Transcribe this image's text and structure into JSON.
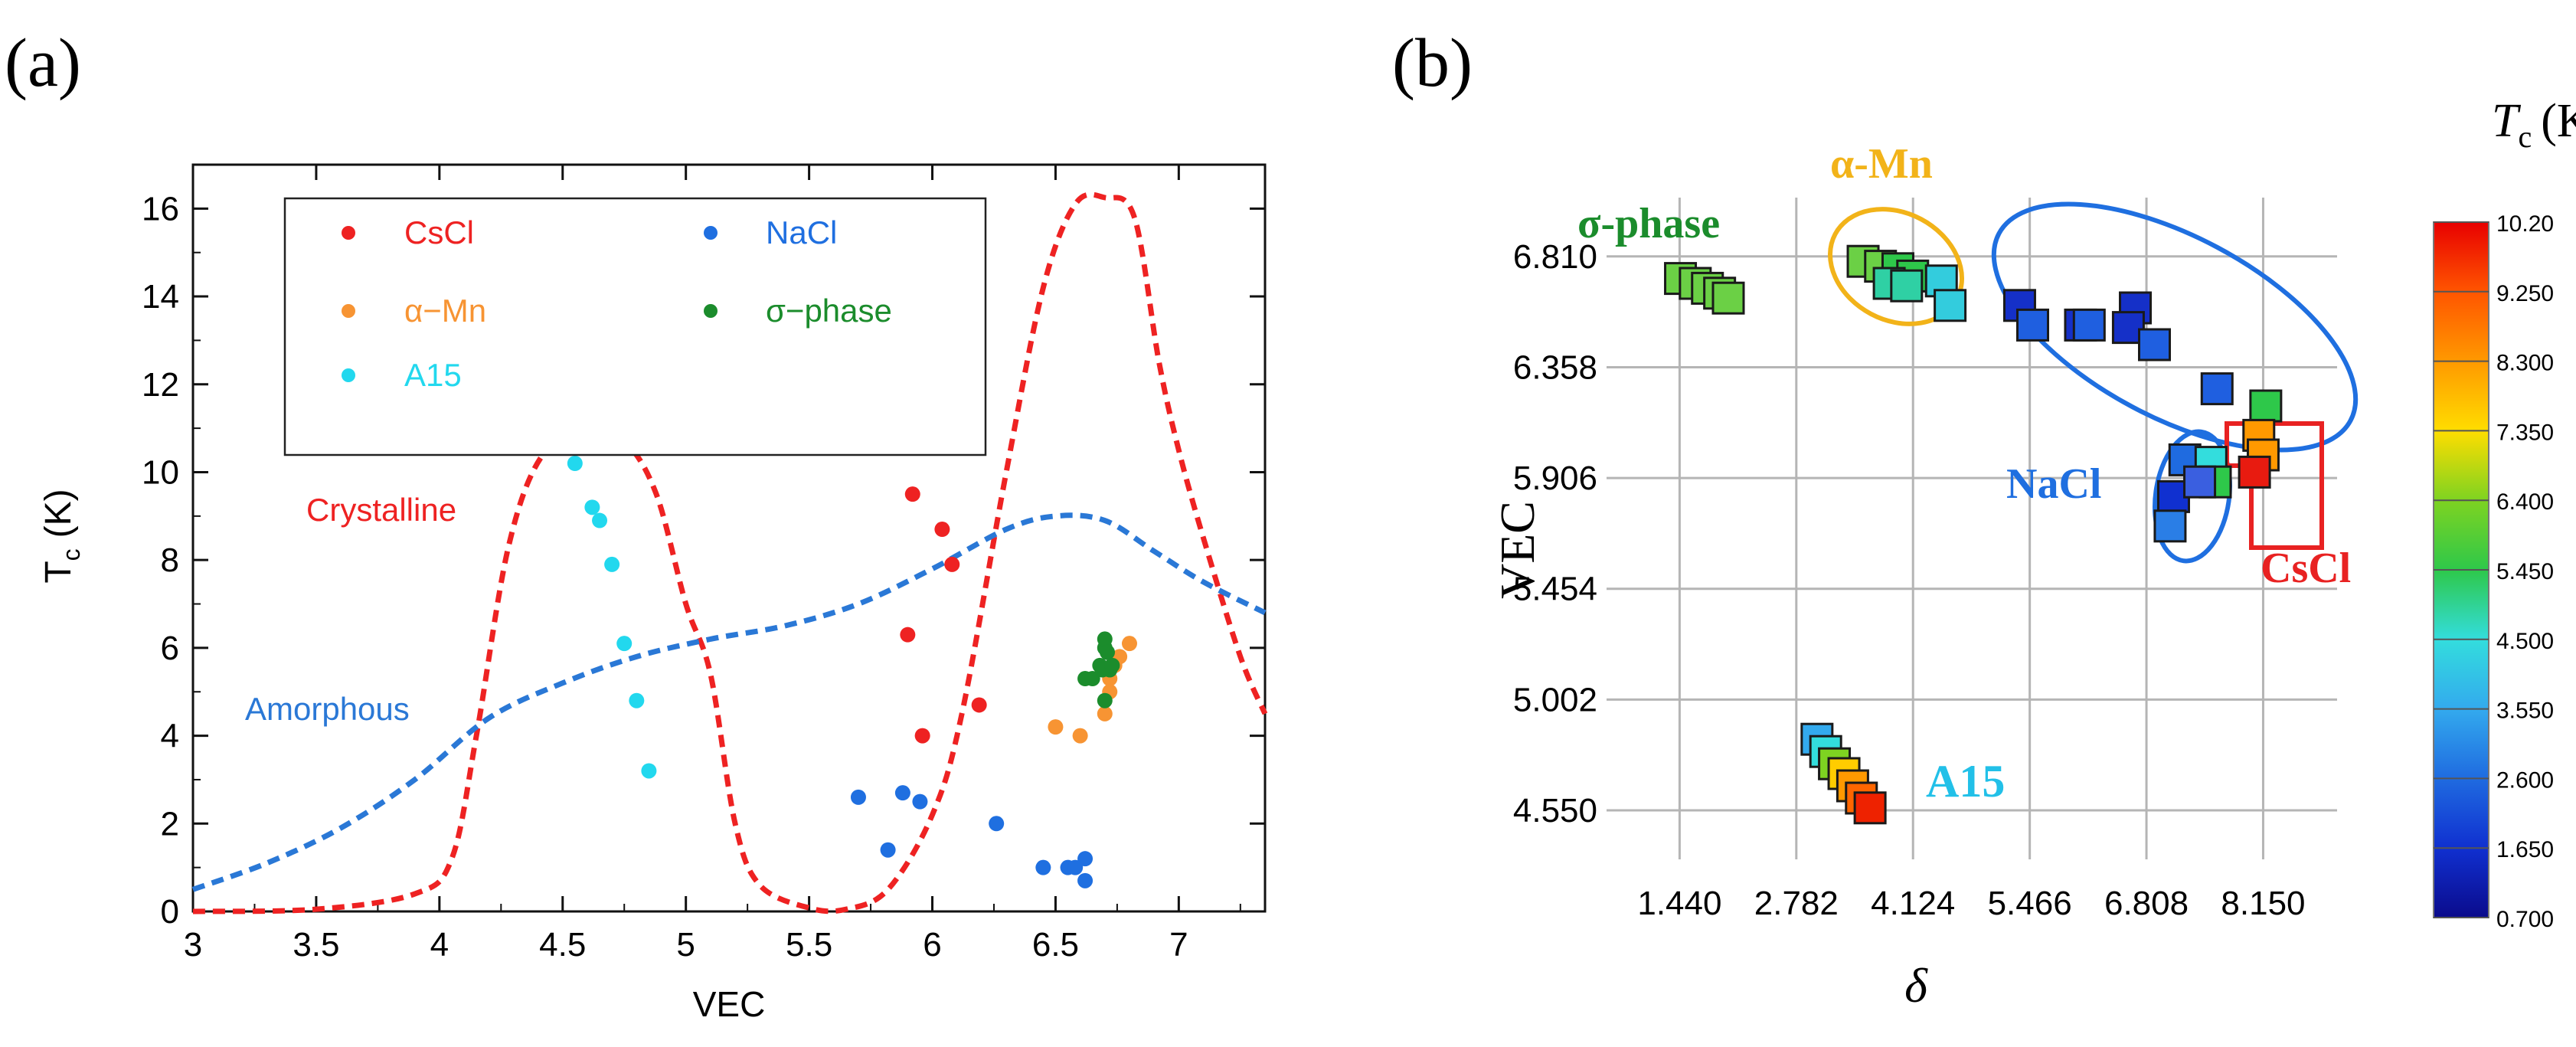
{
  "chart_data": [
    {
      "panel_label": "(a)",
      "type": "scatter",
      "title": "",
      "xlabel": "VEC",
      "ylabel_main": "T",
      "ylabel_sub": "c",
      "ylabel_unit": "(K)",
      "xlim": [
        3,
        7.35
      ],
      "ylim": [
        0,
        17
      ],
      "xticks": [
        3,
        3.5,
        4,
        4.5,
        5,
        5.5,
        6,
        6.5,
        7
      ],
      "xtick_labels": [
        "3",
        "3.5",
        "4",
        "4.5",
        "5",
        "5.5",
        "6",
        "6.5",
        "7"
      ],
      "yticks": [
        0,
        2,
        4,
        6,
        8,
        10,
        12,
        14,
        16
      ],
      "ytick_labels": [
        "0",
        "2",
        "4",
        "6",
        "8",
        "10",
        "12",
        "14",
        "16"
      ],
      "series": [
        {
          "name": "CsCl",
          "color": "#ee2222",
          "points": [
            [
              5.9,
              6.3
            ],
            [
              5.92,
              9.5
            ],
            [
              5.96,
              4.0
            ],
            [
              6.04,
              8.7
            ],
            [
              6.08,
              7.9
            ],
            [
              6.19,
              4.7
            ]
          ]
        },
        {
          "name": "α−Mn",
          "color": "#f79433",
          "points": [
            [
              6.5,
              4.2
            ],
            [
              6.6,
              4.0
            ],
            [
              6.7,
              4.5
            ],
            [
              6.72,
              5.3
            ],
            [
              6.74,
              5.6
            ],
            [
              6.76,
              5.8
            ],
            [
              6.8,
              6.1
            ],
            [
              6.72,
              5.0
            ]
          ]
        },
        {
          "name": "A15",
          "color": "#22d8ee",
          "points": [
            [
              4.55,
              10.2
            ],
            [
              4.62,
              9.2
            ],
            [
              4.65,
              8.9
            ],
            [
              4.7,
              7.9
            ],
            [
              4.75,
              6.1
            ],
            [
              4.8,
              4.8
            ],
            [
              4.85,
              3.2
            ]
          ]
        },
        {
          "name": "NaCl",
          "color": "#1f6fe0",
          "points": [
            [
              5.7,
              2.6
            ],
            [
              5.82,
              1.4
            ],
            [
              5.88,
              2.7
            ],
            [
              5.95,
              2.5
            ],
            [
              6.26,
              2.0
            ],
            [
              6.45,
              1.0
            ],
            [
              6.55,
              1.0
            ],
            [
              6.58,
              1.0
            ],
            [
              6.62,
              1.2
            ],
            [
              6.62,
              0.7
            ]
          ]
        },
        {
          "name": "σ−phase",
          "color": "#1b8c2c",
          "points": [
            [
              6.62,
              5.3
            ],
            [
              6.65,
              5.3
            ],
            [
              6.68,
              5.6
            ],
            [
              6.7,
              6.0
            ],
            [
              6.7,
              6.2
            ],
            [
              6.7,
              4.8
            ],
            [
              6.72,
              5.5
            ],
            [
              6.71,
              5.9
            ],
            [
              6.69,
              5.5
            ],
            [
              6.73,
              5.6
            ]
          ]
        }
      ],
      "curves": [
        {
          "name": "Crystalline",
          "color": "#ee2222",
          "dashed": true,
          "points": [
            [
              3,
              0
            ],
            [
              3.5,
              0.05
            ],
            [
              3.9,
              0.4
            ],
            [
              4.05,
              1.2
            ],
            [
              4.15,
              4.0
            ],
            [
              4.28,
              8.3
            ],
            [
              4.42,
              10.4
            ],
            [
              4.6,
              10.85
            ],
            [
              4.75,
              10.7
            ],
            [
              4.88,
              9.5
            ],
            [
              5.0,
              7.0
            ],
            [
              5.1,
              5.4
            ],
            [
              5.2,
              2.0
            ],
            [
              5.3,
              0.6
            ],
            [
              5.5,
              0.08
            ],
            [
              5.65,
              0.05
            ],
            [
              5.82,
              0.5
            ],
            [
              6.0,
              2.2
            ],
            [
              6.12,
              4.5
            ],
            [
              6.3,
              10.0
            ],
            [
              6.45,
              14.2
            ],
            [
              6.58,
              16.1
            ],
            [
              6.7,
              16.25
            ],
            [
              6.82,
              15.8
            ],
            [
              6.92,
              12.5
            ],
            [
              7.0,
              10.5
            ],
            [
              7.1,
              8.5
            ],
            [
              7.25,
              5.8
            ],
            [
              7.35,
              4.5
            ]
          ]
        },
        {
          "name": "Amorphous",
          "color": "#2a78d6",
          "dashed": true,
          "points": [
            [
              3,
              0.5
            ],
            [
              3.3,
              1.1
            ],
            [
              3.6,
              1.9
            ],
            [
              3.9,
              3.0
            ],
            [
              4.2,
              4.4
            ],
            [
              4.5,
              5.2
            ],
            [
              4.8,
              5.8
            ],
            [
              5.1,
              6.2
            ],
            [
              5.4,
              6.5
            ],
            [
              5.7,
              7.0
            ],
            [
              6.0,
              7.8
            ],
            [
              6.3,
              8.7
            ],
            [
              6.5,
              9.0
            ],
            [
              6.7,
              8.9
            ],
            [
              6.9,
              8.2
            ],
            [
              7.1,
              7.5
            ],
            [
              7.35,
              6.8
            ]
          ]
        }
      ],
      "annotations": [
        {
          "text": "Crystalline",
          "color": "#ee2222",
          "x": 3.42,
          "y": 9.4
        },
        {
          "text": "Amorphous",
          "color": "#2a78d6",
          "x": 3.17,
          "y": 4.55
        }
      ],
      "legend_position": "top-left"
    },
    {
      "panel_label": "(b)",
      "type": "heatmap",
      "title": "",
      "xlabel": "δ",
      "ylabel": "VEC",
      "xlim": [
        0.6,
        9.0
      ],
      "ylim": [
        4.35,
        7.05
      ],
      "xticks": [
        1.44,
        2.782,
        4.124,
        5.466,
        6.808,
        8.15
      ],
      "xtick_labels": [
        "1.440",
        "2.782",
        "4.124",
        "5.466",
        "6.808",
        "8.150"
      ],
      "yticks": [
        4.55,
        5.002,
        5.454,
        5.906,
        6.358,
        6.81
      ],
      "ytick_labels": [
        "4.550",
        "5.002",
        "5.454",
        "5.906",
        "6.358",
        "6.810"
      ],
      "colorbar_title_main": "T",
      "colorbar_title_sub": "c",
      "colorbar_title_unit": "(K)",
      "colorbar_ticks": [
        "10.20",
        "9.250",
        "8.300",
        "7.350",
        "6.400",
        "5.450",
        "4.500",
        "3.550",
        "2.600",
        "1.650",
        "0.700"
      ],
      "colorbar_colors": [
        "#e80000",
        "#ff5500",
        "#ff9900",
        "#ffdd00",
        "#7ed321",
        "#2ec84a",
        "#33dddd",
        "#33aaee",
        "#1f6be0",
        "#1030d0",
        "#0b0b8c"
      ],
      "cells": [
        {
          "group": "σ-phase",
          "color": "#6bd045",
          "points": [
            [
              1.45,
              6.72
            ],
            [
              1.62,
              6.7
            ],
            [
              1.76,
              6.68
            ],
            [
              1.9,
              6.66
            ],
            [
              2.0,
              6.64
            ]
          ]
        },
        {
          "group": "α-Mn",
          "color": "#6bd045",
          "points": [
            [
              3.55,
              6.79
            ],
            [
              3.75,
              6.77
            ]
          ]
        },
        {
          "group": "α-Mn",
          "color": "#2ec84a",
          "points": [
            [
              3.95,
              6.76
            ],
            [
              4.12,
              6.73
            ]
          ]
        },
        {
          "group": "α-Mn",
          "color": "#2fd0a4",
          "points": [
            [
              3.85,
              6.7
            ],
            [
              4.05,
              6.69
            ]
          ]
        },
        {
          "group": "α-Mn",
          "color": "#33ccdd",
          "points": [
            [
              4.45,
              6.71
            ],
            [
              4.55,
              6.61
            ]
          ]
        },
        {
          "group": "NaCl",
          "color": "#1530c8",
          "points": [
            [
              5.35,
              6.61
            ],
            [
              6.05,
              6.53
            ],
            [
              6.68,
              6.6
            ],
            [
              6.6,
              6.52
            ]
          ]
        },
        {
          "group": "NaCl",
          "color": "#1f5fe0",
          "points": [
            [
              5.5,
              6.53
            ],
            [
              6.15,
              6.53
            ],
            [
              6.9,
              6.45
            ],
            [
              7.62,
              6.27
            ]
          ]
        },
        {
          "group": "NaCl",
          "color": "#1030d0",
          "points": [
            [
              7.12,
              5.83
            ]
          ]
        },
        {
          "group": "NaCl",
          "color": "#2a7ee6",
          "points": [
            [
              7.08,
              5.71
            ]
          ]
        },
        {
          "group": "NaCl",
          "color": "#1f6be0",
          "points": [
            [
              7.25,
              5.98
            ]
          ]
        },
        {
          "group": "CsCl",
          "color": "#33dddd",
          "points": [
            [
              7.55,
              5.97
            ]
          ]
        },
        {
          "group": "CsCl",
          "color": "#2ec84a",
          "points": [
            [
              7.6,
              5.89
            ]
          ]
        },
        {
          "group": "CsCl",
          "color": "#3a5fe0",
          "points": [
            [
              7.42,
              5.89
            ]
          ]
        },
        {
          "group": "CsCl",
          "color": "#2ec84a",
          "points": [
            [
              8.18,
              6.2
            ]
          ]
        },
        {
          "group": "CsCl",
          "color": "#ff9900",
          "points": [
            [
              8.1,
              6.08
            ],
            [
              8.15,
              6.0
            ]
          ]
        },
        {
          "group": "CsCl",
          "color": "#e81b10",
          "points": [
            [
              8.05,
              5.93
            ]
          ]
        },
        {
          "group": "A15",
          "color": "#33aaee",
          "points": [
            [
              3.02,
              4.84
            ]
          ]
        },
        {
          "group": "A15",
          "color": "#33dddd",
          "points": [
            [
              3.12,
              4.79
            ]
          ]
        },
        {
          "group": "A15",
          "color": "#7ed321",
          "points": [
            [
              3.22,
              4.74
            ]
          ]
        },
        {
          "group": "A15",
          "color": "#ffcc00",
          "points": [
            [
              3.33,
              4.7
            ]
          ]
        },
        {
          "group": "A15",
          "color": "#ff9900",
          "points": [
            [
              3.43,
              4.65
            ]
          ]
        },
        {
          "group": "A15",
          "color": "#ff6600",
          "points": [
            [
              3.53,
              4.6
            ]
          ]
        },
        {
          "group": "A15",
          "color": "#ee2200",
          "points": [
            [
              3.63,
              4.56
            ]
          ]
        }
      ],
      "group_labels": [
        {
          "text": "σ-phase",
          "color": "#1b8c2c"
        },
        {
          "text": "α-Mn",
          "color": "#f2b319"
        },
        {
          "text": "NaCl",
          "color": "#1f6fe0"
        },
        {
          "text": "CsCl",
          "color": "#e82222"
        },
        {
          "text": "A15",
          "color": "#22c0e8"
        }
      ]
    }
  ]
}
